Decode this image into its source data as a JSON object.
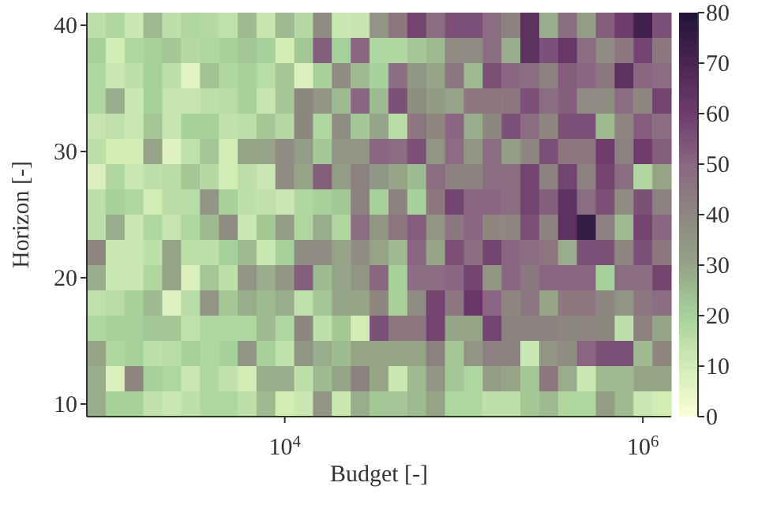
{
  "chart_data": {
    "type": "heatmap",
    "xlabel": "Budget [-]",
    "ylabel": "Horizon [-]",
    "categories": [
      null,
      null,
      null,
      null,
      null,
      null,
      null,
      null,
      null,
      null,
      "10$^{4}$",
      null,
      null,
      null,
      null,
      null,
      null,
      null,
      null,
      null,
      null,
      null,
      null,
      null,
      null,
      null,
      null,
      null,
      null,
      "10$^{6}$",
      null
    ],
    "y_categories": [
      "40",
      null,
      null,
      null,
      null,
      "30",
      null,
      null,
      null,
      null,
      "20",
      null,
      null,
      null,
      null,
      "10"
    ],
    "clim": [
      0,
      80
    ],
    "cticks": [
      0,
      10,
      20,
      30,
      40,
      50,
      60,
      70,
      80
    ],
    "cells": [
      [
        15,
        18,
        12,
        25,
        15,
        18,
        17,
        14,
        25,
        13,
        25,
        17,
        38,
        12,
        13,
        35,
        45,
        58,
        48,
        55,
        55,
        48,
        42,
        65,
        28,
        48,
        32,
        52,
        60,
        72,
        55
      ],
      [
        20,
        10,
        18,
        20,
        22,
        17,
        18,
        20,
        22,
        20,
        10,
        22,
        52,
        20,
        50,
        18,
        18,
        22,
        25,
        38,
        38,
        48,
        28,
        65,
        55,
        62,
        48,
        38,
        45,
        58,
        45
      ],
      [
        18,
        12,
        15,
        20,
        15,
        6,
        23,
        18,
        20,
        16,
        22,
        8,
        20,
        38,
        25,
        20,
        47,
        35,
        30,
        45,
        25,
        55,
        50,
        48,
        42,
        52,
        50,
        45,
        65,
        50,
        48
      ],
      [
        18,
        28,
        12,
        20,
        13,
        13,
        15,
        16,
        20,
        13,
        22,
        40,
        35,
        25,
        50,
        25,
        55,
        38,
        33,
        30,
        45,
        45,
        45,
        55,
        48,
        52,
        38,
        38,
        48,
        40,
        58
      ],
      [
        13,
        14,
        12,
        22,
        13,
        20,
        20,
        14,
        15,
        22,
        17,
        40,
        18,
        38,
        22,
        30,
        16,
        45,
        40,
        50,
        28,
        40,
        55,
        48,
        40,
        55,
        55,
        25,
        40,
        52,
        48
      ],
      [
        15,
        10,
        10,
        30,
        7,
        14,
        22,
        10,
        30,
        30,
        38,
        32,
        22,
        35,
        35,
        50,
        48,
        55,
        35,
        48,
        35,
        48,
        32,
        40,
        55,
        45,
        45,
        60,
        42,
        60,
        52
      ],
      [
        8,
        18,
        12,
        15,
        16,
        22,
        17,
        10,
        15,
        12,
        38,
        30,
        52,
        32,
        42,
        35,
        30,
        25,
        48,
        42,
        42,
        48,
        48,
        58,
        42,
        58,
        42,
        58,
        48,
        18,
        30
      ],
      [
        15,
        20,
        18,
        10,
        16,
        16,
        35,
        20,
        15,
        14,
        12,
        18,
        20,
        22,
        42,
        20,
        42,
        20,
        45,
        58,
        50,
        50,
        48,
        58,
        52,
        65,
        48,
        55,
        38,
        55,
        42
      ],
      [
        15,
        28,
        12,
        18,
        13,
        18,
        25,
        38,
        12,
        22,
        32,
        18,
        28,
        18,
        48,
        35,
        45,
        52,
        35,
        45,
        50,
        40,
        40,
        55,
        42,
        65,
        75,
        42,
        25,
        58,
        50
      ],
      [
        40,
        12,
        12,
        15,
        30,
        15,
        15,
        20,
        25,
        12,
        20,
        38,
        38,
        30,
        38,
        30,
        25,
        50,
        30,
        55,
        48,
        58,
        50,
        48,
        45,
        28,
        55,
        55,
        40,
        55,
        45
      ],
      [
        28,
        12,
        12,
        18,
        30,
        8,
        22,
        15,
        35,
        28,
        35,
        52,
        25,
        30,
        35,
        50,
        20,
        48,
        48,
        50,
        58,
        35,
        50,
        45,
        50,
        50,
        50,
        20,
        48,
        48,
        58
      ],
      [
        14,
        16,
        20,
        25,
        7,
        16,
        35,
        22,
        28,
        25,
        28,
        14,
        22,
        30,
        30,
        40,
        20,
        38,
        58,
        45,
        62,
        50,
        40,
        45,
        30,
        45,
        45,
        40,
        35,
        45,
        48
      ],
      [
        18,
        20,
        20,
        22,
        22,
        14,
        18,
        18,
        18,
        25,
        18,
        40,
        15,
        22,
        10,
        55,
        45,
        45,
        58,
        30,
        30,
        58,
        42,
        42,
        42,
        40,
        40,
        40,
        15,
        42,
        30
      ],
      [
        30,
        18,
        20,
        15,
        16,
        20,
        18,
        20,
        35,
        20,
        14,
        35,
        28,
        25,
        30,
        30,
        30,
        30,
        42,
        22,
        35,
        42,
        42,
        12,
        35,
        38,
        50,
        55,
        55,
        25,
        40
      ],
      [
        28,
        8,
        40,
        20,
        18,
        12,
        18,
        14,
        10,
        28,
        28,
        15,
        25,
        30,
        42,
        30,
        12,
        25,
        35,
        22,
        18,
        32,
        30,
        22,
        45,
        28,
        12,
        25,
        25,
        30,
        30
      ],
      [
        28,
        20,
        20,
        14,
        12,
        15,
        18,
        18,
        15,
        25,
        10,
        12,
        35,
        12,
        28,
        22,
        22,
        25,
        30,
        18,
        18,
        15,
        15,
        22,
        25,
        18,
        18,
        32,
        25,
        12,
        10
      ]
    ]
  }
}
